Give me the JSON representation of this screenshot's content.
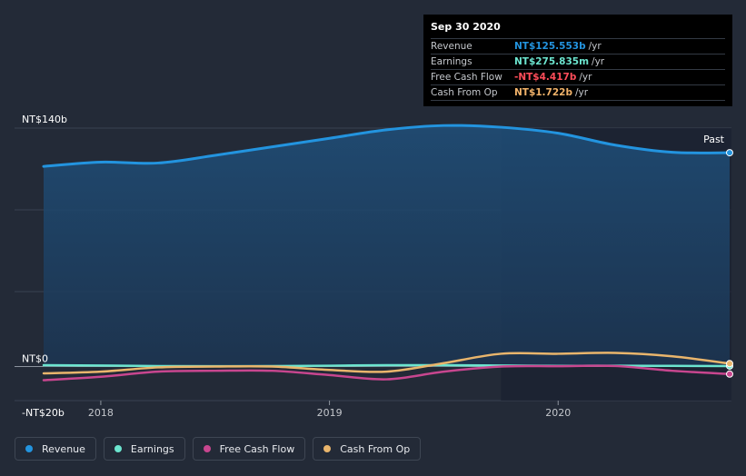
{
  "tooltip": {
    "date": "Sep 30 2020",
    "rows": [
      {
        "label": "Revenue",
        "value": "NT$125.553b",
        "unit": "/yr",
        "color": "#2394df"
      },
      {
        "label": "Earnings",
        "value": "NT$275.835m",
        "unit": "/yr",
        "color": "#6ce5cf"
      },
      {
        "label": "Free Cash Flow",
        "value": "-NT$4.417b",
        "unit": "/yr",
        "color": "#ff4d5a"
      },
      {
        "label": "Cash From Op",
        "value": "NT$1.722b",
        "unit": "/yr",
        "color": "#f2b36a"
      }
    ]
  },
  "legend": [
    {
      "label": "Revenue",
      "color": "#2394df"
    },
    {
      "label": "Earnings",
      "color": "#6ce5cf"
    },
    {
      "label": "Free Cash Flow",
      "color": "#c8468f"
    },
    {
      "label": "Cash From Op",
      "color": "#e9b56c"
    }
  ],
  "chart_data": {
    "type": "line",
    "y_axis_labels": [
      {
        "label": "NT$140b",
        "value": 140
      },
      {
        "label": "NT$0",
        "value": 0
      },
      {
        "label": "-NT$20b",
        "value": -20
      }
    ],
    "ylim": [
      -20,
      140
    ],
    "xlim": [
      2017.75,
      2020.75
    ],
    "x_ticks": [
      {
        "label": "2018",
        "value": 2018
      },
      {
        "label": "2019",
        "value": 2019
      },
      {
        "label": "2020",
        "value": 2020
      }
    ],
    "past_label": "Past",
    "past_shade_from": 2019.75,
    "series": [
      {
        "name": "Revenue",
        "color": "#2394df",
        "area": true,
        "x": [
          2017.75,
          2018.0,
          2018.25,
          2018.5,
          2018.75,
          2019.0,
          2019.25,
          2019.5,
          2019.75,
          2020.0,
          2020.25,
          2020.5,
          2020.75
        ],
        "y": [
          117.5,
          120,
          119.5,
          124,
          129,
          134,
          139,
          141.5,
          140.5,
          137,
          130,
          125.8,
          125.553
        ]
      },
      {
        "name": "Earnings",
        "color": "#6ce5cf",
        "area": false,
        "x": [
          2017.75,
          2018.0,
          2018.25,
          2018.5,
          2018.75,
          2019.0,
          2019.25,
          2019.5,
          2019.75,
          2020.0,
          2020.25,
          2020.5,
          2020.75
        ],
        "y": [
          0.8,
          0.6,
          0.3,
          0.2,
          0.3,
          0.5,
          0.8,
          0.8,
          0.6,
          0.4,
          0.5,
          0.4,
          0.276
        ]
      },
      {
        "name": "Free Cash Flow",
        "color": "#c8468f",
        "area": false,
        "x": [
          2017.75,
          2018.0,
          2018.25,
          2018.5,
          2018.75,
          2019.0,
          2019.25,
          2019.5,
          2019.75,
          2020.0,
          2020.25,
          2020.5,
          2020.75
        ],
        "y": [
          -8,
          -6,
          -3,
          -2.5,
          -2.5,
          -5,
          -7.5,
          -3,
          0,
          0.2,
          0.3,
          -2.5,
          -4.417
        ]
      },
      {
        "name": "Cash From Op",
        "color": "#e9b56c",
        "area": false,
        "x": [
          2017.75,
          2018.0,
          2018.25,
          2018.5,
          2018.75,
          2019.0,
          2019.25,
          2019.5,
          2019.75,
          2020.0,
          2020.25,
          2020.5,
          2020.75
        ],
        "y": [
          -4,
          -3,
          -0.5,
          0,
          0,
          -2,
          -3,
          2,
          7.5,
          7.5,
          8,
          6,
          1.722
        ]
      }
    ]
  }
}
